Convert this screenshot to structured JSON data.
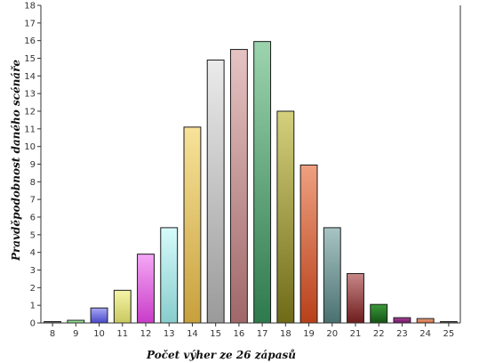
{
  "chart_data": {
    "type": "bar",
    "xlabel": "Počet výher ze 26 zápasů",
    "ylabel": "Pravděpodobnost daného scénáře",
    "ylim": [
      0,
      18
    ],
    "yticks": [
      0,
      1,
      2,
      3,
      4,
      5,
      6,
      7,
      8,
      9,
      10,
      11,
      12,
      13,
      14,
      15,
      16,
      17,
      18
    ],
    "grid": false,
    "categories": [
      "8",
      "9",
      "10",
      "11",
      "12",
      "13",
      "14",
      "15",
      "16",
      "17",
      "18",
      "19",
      "20",
      "21",
      "22",
      "23",
      "24",
      "25"
    ],
    "values": [
      0.05,
      0.15,
      0.85,
      1.85,
      3.9,
      5.4,
      11.1,
      14.9,
      15.5,
      15.95,
      12.0,
      8.95,
      5.4,
      2.8,
      1.05,
      0.3,
      0.25,
      0.05
    ],
    "colors": [
      [
        "#9a9a9a",
        "#5a5a5a"
      ],
      [
        "#b6efb6",
        "#6fcf6f"
      ],
      [
        "#a8a8f5",
        "#4848c8"
      ],
      [
        "#f5f5a8",
        "#c8c860"
      ],
      [
        "#f5a8f5",
        "#c83cc8"
      ],
      [
        "#d6fbfb",
        "#88cccc"
      ],
      [
        "#f7e39a",
        "#c8a03c"
      ],
      [
        "#ebebeb",
        "#9a9a9a"
      ],
      [
        "#e6c3c3",
        "#a06868"
      ],
      [
        "#9cd4ad",
        "#2e7a4c"
      ],
      [
        "#d4d07c",
        "#6e6a18"
      ],
      [
        "#eea080",
        "#b8401a"
      ],
      [
        "#a8c4c4",
        "#4a7070"
      ],
      [
        "#c88888",
        "#6e1c1c"
      ],
      [
        "#3a9a3a",
        "#145214"
      ],
      [
        "#a8489a",
        "#6a1060"
      ],
      [
        "#f0a888",
        "#c46438"
      ],
      [
        "#8a8a8a",
        "#3a3a3a"
      ]
    ]
  }
}
